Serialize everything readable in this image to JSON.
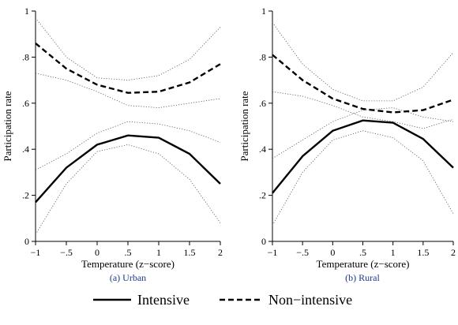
{
  "chart_data": [
    {
      "type": "line",
      "caption": "(a) Urban",
      "xlabel": "Temperature (z−score)",
      "ylabel": "Participation rate",
      "xlim": [
        -1,
        2
      ],
      "ylim": [
        0,
        1
      ],
      "xticks": [
        -1,
        -0.5,
        0,
        0.5,
        1,
        1.5,
        2
      ],
      "xtick_labels": [
        "−1",
        "−.5",
        "0",
        ".5",
        "1",
        "1.5",
        "2"
      ],
      "yticks": [
        0,
        0.2,
        0.4,
        0.6,
        0.8,
        1
      ],
      "ytick_labels": [
        "0",
        ".2",
        ".4",
        ".6",
        ".8",
        "1"
      ],
      "x": [
        -1,
        -0.5,
        0,
        0.5,
        1,
        1.5,
        2
      ],
      "series": [
        {
          "name": "Intensive",
          "style": "solid",
          "values": [
            0.17,
            0.32,
            0.42,
            0.46,
            0.45,
            0.38,
            0.25
          ],
          "ci_lower": [
            0.03,
            0.25,
            0.39,
            0.42,
            0.38,
            0.27,
            0.08
          ],
          "ci_upper": [
            0.31,
            0.38,
            0.47,
            0.52,
            0.51,
            0.48,
            0.43
          ]
        },
        {
          "name": "Non−intensive",
          "style": "dashed",
          "values": [
            0.86,
            0.75,
            0.68,
            0.645,
            0.65,
            0.69,
            0.77
          ],
          "ci_lower": [
            0.73,
            0.7,
            0.65,
            0.59,
            0.58,
            0.6,
            0.62
          ],
          "ci_upper": [
            0.97,
            0.8,
            0.71,
            0.7,
            0.72,
            0.79,
            0.93
          ]
        }
      ]
    },
    {
      "type": "line",
      "caption": "(b) Rural",
      "xlabel": "Temperature (z−score)",
      "ylabel": "Participation rate",
      "xlim": [
        -1,
        2
      ],
      "ylim": [
        0,
        1
      ],
      "xticks": [
        -1,
        -0.5,
        0,
        0.5,
        1,
        1.5,
        2
      ],
      "xtick_labels": [
        "−1",
        "−.5",
        "0",
        ".5",
        "1",
        "1.5",
        "2"
      ],
      "yticks": [
        0,
        0.2,
        0.4,
        0.6,
        0.8,
        1
      ],
      "ytick_labels": [
        "0",
        ".2",
        ".4",
        ".6",
        ".8",
        "1"
      ],
      "x": [
        -1,
        -0.5,
        0,
        0.5,
        1,
        1.5,
        2
      ],
      "series": [
        {
          "name": "Intensive",
          "style": "solid",
          "values": [
            0.21,
            0.37,
            0.48,
            0.525,
            0.515,
            0.445,
            0.32
          ],
          "ci_lower": [
            0.07,
            0.3,
            0.44,
            0.48,
            0.45,
            0.35,
            0.12
          ],
          "ci_upper": [
            0.36,
            0.44,
            0.52,
            0.57,
            0.58,
            0.54,
            0.52
          ]
        },
        {
          "name": "Non−intensive",
          "style": "dashed",
          "values": [
            0.81,
            0.7,
            0.62,
            0.575,
            0.56,
            0.57,
            0.615
          ],
          "ci_lower": [
            0.65,
            0.63,
            0.59,
            0.54,
            0.52,
            0.49,
            0.53
          ],
          "ci_upper": [
            0.95,
            0.77,
            0.66,
            0.61,
            0.61,
            0.67,
            0.82
          ]
        }
      ]
    }
  ],
  "legend": {
    "position": "bottom-center",
    "items": [
      {
        "label": "Intensive",
        "style": "solid"
      },
      {
        "label": "Non−intensive",
        "style": "dashed"
      }
    ]
  }
}
